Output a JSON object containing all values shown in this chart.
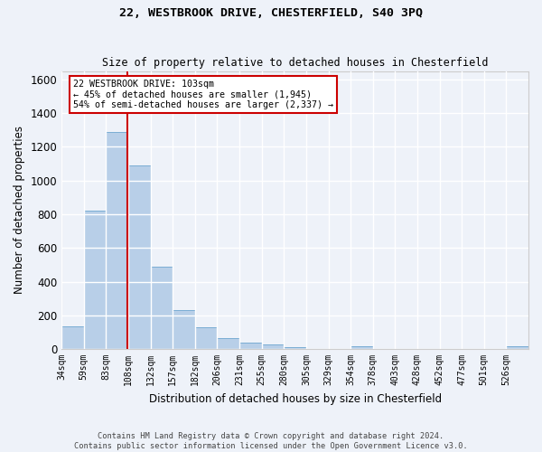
{
  "title1": "22, WESTBROOK DRIVE, CHESTERFIELD, S40 3PQ",
  "title2": "Size of property relative to detached houses in Chesterfield",
  "xlabel": "Distribution of detached houses by size in Chesterfield",
  "ylabel": "Number of detached properties",
  "footer1": "Contains HM Land Registry data © Crown copyright and database right 2024.",
  "footer2": "Contains public sector information licensed under the Open Government Licence v3.0.",
  "categories": [
    "34sqm",
    "59sqm",
    "83sqm",
    "108sqm",
    "132sqm",
    "157sqm",
    "182sqm",
    "206sqm",
    "231sqm",
    "255sqm",
    "280sqm",
    "305sqm",
    "329sqm",
    "354sqm",
    "378sqm",
    "403sqm",
    "428sqm",
    "452sqm",
    "477sqm",
    "501sqm",
    "526sqm"
  ],
  "values": [
    137,
    820,
    1290,
    1090,
    487,
    232,
    130,
    65,
    38,
    27,
    13,
    0,
    0,
    15,
    0,
    0,
    0,
    0,
    0,
    0,
    15
  ],
  "bar_color": "#b8cfe8",
  "bar_edge_color": "#7aadd4",
  "background_color": "#eef2f9",
  "grid_color": "#ffffff",
  "annotation_box_color": "#ffffff",
  "annotation_box_edge": "#cc0000",
  "annotation_text_line1": "22 WESTBROOK DRIVE: 103sqm",
  "annotation_text_line2": "← 45% of detached houses are smaller (1,945)",
  "annotation_text_line3": "54% of semi-detached houses are larger (2,337) →",
  "vline_color": "#cc0000",
  "ylim": [
    0,
    1650
  ],
  "bin_width": 25,
  "n_bins": 21
}
